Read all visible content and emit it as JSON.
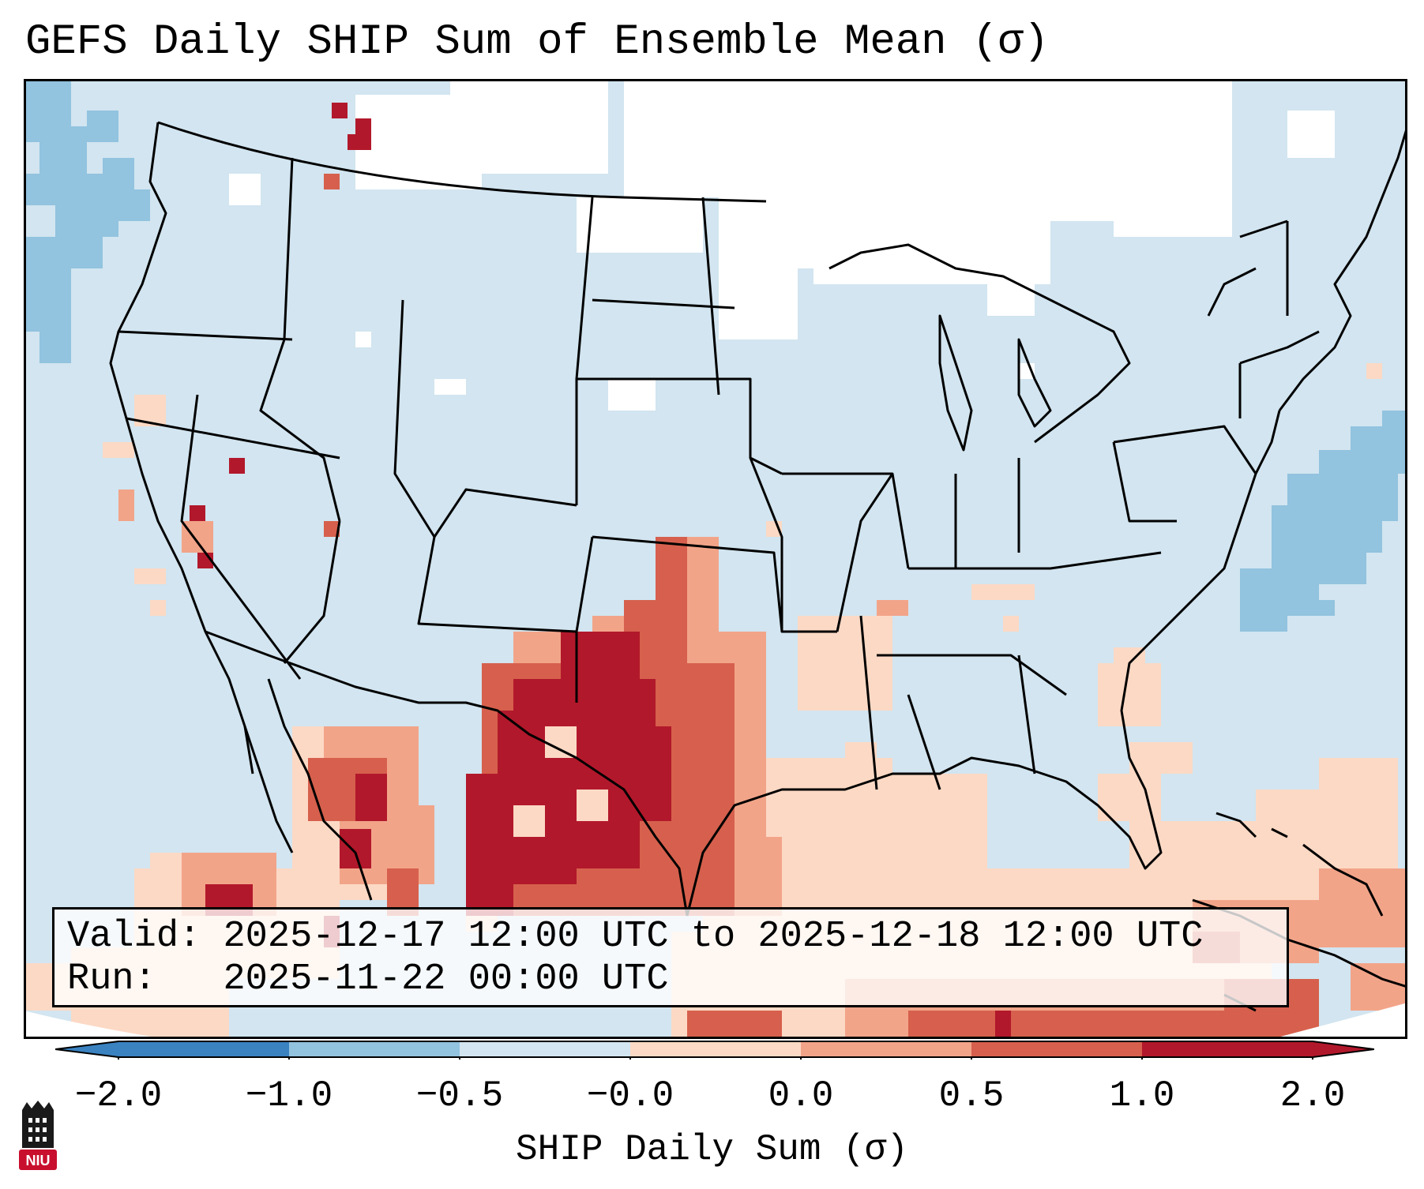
{
  "title": "GEFS Daily SHIP Sum of Ensemble Mean (σ)",
  "info": {
    "valid_label": "Valid:",
    "valid_value": "2025-12-17 12:00 UTC to 2025-12-18 12:00 UTC",
    "run_label": "Run:",
    "run_value": "2025-11-22 00:00 UTC"
  },
  "colorbar": {
    "label": "SHIP Daily Sum (σ)",
    "ticks": [
      "−2.0",
      "−1.0",
      "−0.5",
      "−0.0",
      "0.0",
      "0.5",
      "1.0",
      "2.0"
    ],
    "colors": [
      "#3a82c0",
      "#92c3df",
      "#d2e5f0",
      "#f7f7f7",
      "#fcd9c5",
      "#f2a489",
      "#d6604d",
      "#b2182b"
    ]
  },
  "logo_text": "NIU",
  "colors": {
    "background_field": "#d2e5f0",
    "neutral": "#ffffff",
    "low_blue": "#92c3df",
    "high_light": "#fcd9c5",
    "high_mid": "#f2a489",
    "high_strong": "#d6604d",
    "high_max": "#b2182b"
  }
}
